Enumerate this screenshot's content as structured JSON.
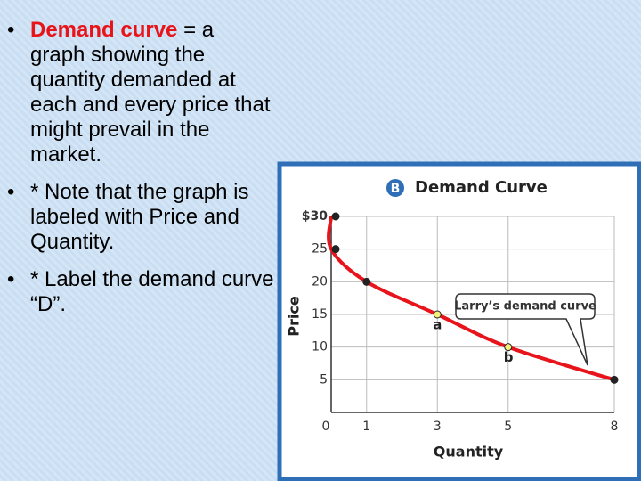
{
  "slide": {
    "bullets": [
      {
        "term": "Demand curve",
        "text": " = a graph showing the quantity demanded at each and every price that might prevail in the market."
      },
      {
        "text": "* Note that the graph is labeled with Price and Quantity."
      },
      {
        "text": "* Label the demand curve  “D”."
      }
    ]
  },
  "chart_data": {
    "type": "line",
    "title_badge": "B",
    "title": "Demand Curve",
    "xlabel": "Quantity",
    "ylabel": "Price",
    "x": [
      0,
      0,
      1,
      3,
      5,
      8
    ],
    "series": [
      {
        "name": "Larry’s demand curve",
        "color": "#e8141b",
        "values": [
          30,
          25,
          20,
          15,
          10,
          5
        ]
      }
    ],
    "annotations": [
      {
        "text": "a",
        "x": 3,
        "y": 15
      },
      {
        "text": "b",
        "x": 5,
        "y": 10
      }
    ],
    "xlim": [
      0,
      8
    ],
    "ylim": [
      0,
      30
    ],
    "xticks": [
      0,
      1,
      3,
      5,
      8
    ],
    "yticks": [
      5,
      10,
      15,
      20,
      25,
      {
        "value": 30,
        "label": "$30"
      }
    ],
    "grid": true
  }
}
